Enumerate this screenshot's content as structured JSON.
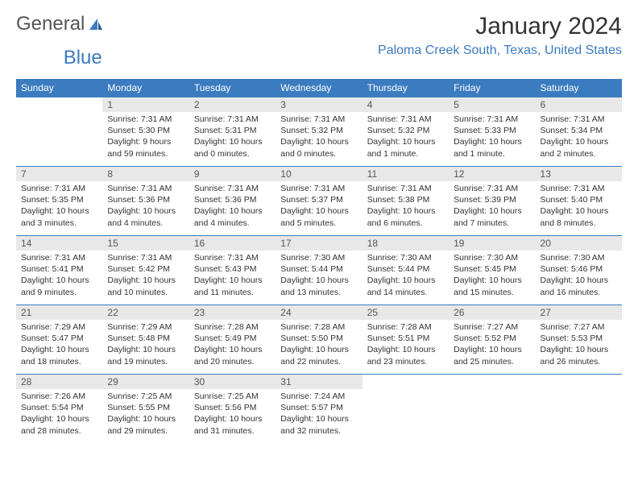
{
  "logo": {
    "text1": "General",
    "text2": "Blue"
  },
  "title": "January 2024",
  "location": "Paloma Creek South, Texas, United States",
  "colors": {
    "header_bg": "#3b7bbf",
    "header_text": "#ffffff",
    "daynum_bg": "#e8e8e8",
    "border": "#3b7bbf",
    "body_text": "#333333",
    "location_text": "#3b7bbf"
  },
  "daynames": [
    "Sunday",
    "Monday",
    "Tuesday",
    "Wednesday",
    "Thursday",
    "Friday",
    "Saturday"
  ],
  "weeks": [
    [
      null,
      {
        "n": "1",
        "sr": "Sunrise: 7:31 AM",
        "ss": "Sunset: 5:30 PM",
        "dl": "Daylight: 9 hours and 59 minutes."
      },
      {
        "n": "2",
        "sr": "Sunrise: 7:31 AM",
        "ss": "Sunset: 5:31 PM",
        "dl": "Daylight: 10 hours and 0 minutes."
      },
      {
        "n": "3",
        "sr": "Sunrise: 7:31 AM",
        "ss": "Sunset: 5:32 PM",
        "dl": "Daylight: 10 hours and 0 minutes."
      },
      {
        "n": "4",
        "sr": "Sunrise: 7:31 AM",
        "ss": "Sunset: 5:32 PM",
        "dl": "Daylight: 10 hours and 1 minute."
      },
      {
        "n": "5",
        "sr": "Sunrise: 7:31 AM",
        "ss": "Sunset: 5:33 PM",
        "dl": "Daylight: 10 hours and 1 minute."
      },
      {
        "n": "6",
        "sr": "Sunrise: 7:31 AM",
        "ss": "Sunset: 5:34 PM",
        "dl": "Daylight: 10 hours and 2 minutes."
      }
    ],
    [
      {
        "n": "7",
        "sr": "Sunrise: 7:31 AM",
        "ss": "Sunset: 5:35 PM",
        "dl": "Daylight: 10 hours and 3 minutes."
      },
      {
        "n": "8",
        "sr": "Sunrise: 7:31 AM",
        "ss": "Sunset: 5:36 PM",
        "dl": "Daylight: 10 hours and 4 minutes."
      },
      {
        "n": "9",
        "sr": "Sunrise: 7:31 AM",
        "ss": "Sunset: 5:36 PM",
        "dl": "Daylight: 10 hours and 4 minutes."
      },
      {
        "n": "10",
        "sr": "Sunrise: 7:31 AM",
        "ss": "Sunset: 5:37 PM",
        "dl": "Daylight: 10 hours and 5 minutes."
      },
      {
        "n": "11",
        "sr": "Sunrise: 7:31 AM",
        "ss": "Sunset: 5:38 PM",
        "dl": "Daylight: 10 hours and 6 minutes."
      },
      {
        "n": "12",
        "sr": "Sunrise: 7:31 AM",
        "ss": "Sunset: 5:39 PM",
        "dl": "Daylight: 10 hours and 7 minutes."
      },
      {
        "n": "13",
        "sr": "Sunrise: 7:31 AM",
        "ss": "Sunset: 5:40 PM",
        "dl": "Daylight: 10 hours and 8 minutes."
      }
    ],
    [
      {
        "n": "14",
        "sr": "Sunrise: 7:31 AM",
        "ss": "Sunset: 5:41 PM",
        "dl": "Daylight: 10 hours and 9 minutes."
      },
      {
        "n": "15",
        "sr": "Sunrise: 7:31 AM",
        "ss": "Sunset: 5:42 PM",
        "dl": "Daylight: 10 hours and 10 minutes."
      },
      {
        "n": "16",
        "sr": "Sunrise: 7:31 AM",
        "ss": "Sunset: 5:43 PM",
        "dl": "Daylight: 10 hours and 11 minutes."
      },
      {
        "n": "17",
        "sr": "Sunrise: 7:30 AM",
        "ss": "Sunset: 5:44 PM",
        "dl": "Daylight: 10 hours and 13 minutes."
      },
      {
        "n": "18",
        "sr": "Sunrise: 7:30 AM",
        "ss": "Sunset: 5:44 PM",
        "dl": "Daylight: 10 hours and 14 minutes."
      },
      {
        "n": "19",
        "sr": "Sunrise: 7:30 AM",
        "ss": "Sunset: 5:45 PM",
        "dl": "Daylight: 10 hours and 15 minutes."
      },
      {
        "n": "20",
        "sr": "Sunrise: 7:30 AM",
        "ss": "Sunset: 5:46 PM",
        "dl": "Daylight: 10 hours and 16 minutes."
      }
    ],
    [
      {
        "n": "21",
        "sr": "Sunrise: 7:29 AM",
        "ss": "Sunset: 5:47 PM",
        "dl": "Daylight: 10 hours and 18 minutes."
      },
      {
        "n": "22",
        "sr": "Sunrise: 7:29 AM",
        "ss": "Sunset: 5:48 PM",
        "dl": "Daylight: 10 hours and 19 minutes."
      },
      {
        "n": "23",
        "sr": "Sunrise: 7:28 AM",
        "ss": "Sunset: 5:49 PM",
        "dl": "Daylight: 10 hours and 20 minutes."
      },
      {
        "n": "24",
        "sr": "Sunrise: 7:28 AM",
        "ss": "Sunset: 5:50 PM",
        "dl": "Daylight: 10 hours and 22 minutes."
      },
      {
        "n": "25",
        "sr": "Sunrise: 7:28 AM",
        "ss": "Sunset: 5:51 PM",
        "dl": "Daylight: 10 hours and 23 minutes."
      },
      {
        "n": "26",
        "sr": "Sunrise: 7:27 AM",
        "ss": "Sunset: 5:52 PM",
        "dl": "Daylight: 10 hours and 25 minutes."
      },
      {
        "n": "27",
        "sr": "Sunrise: 7:27 AM",
        "ss": "Sunset: 5:53 PM",
        "dl": "Daylight: 10 hours and 26 minutes."
      }
    ],
    [
      {
        "n": "28",
        "sr": "Sunrise: 7:26 AM",
        "ss": "Sunset: 5:54 PM",
        "dl": "Daylight: 10 hours and 28 minutes."
      },
      {
        "n": "29",
        "sr": "Sunrise: 7:25 AM",
        "ss": "Sunset: 5:55 PM",
        "dl": "Daylight: 10 hours and 29 minutes."
      },
      {
        "n": "30",
        "sr": "Sunrise: 7:25 AM",
        "ss": "Sunset: 5:56 PM",
        "dl": "Daylight: 10 hours and 31 minutes."
      },
      {
        "n": "31",
        "sr": "Sunrise: 7:24 AM",
        "ss": "Sunset: 5:57 PM",
        "dl": "Daylight: 10 hours and 32 minutes."
      },
      null,
      null,
      null
    ]
  ]
}
